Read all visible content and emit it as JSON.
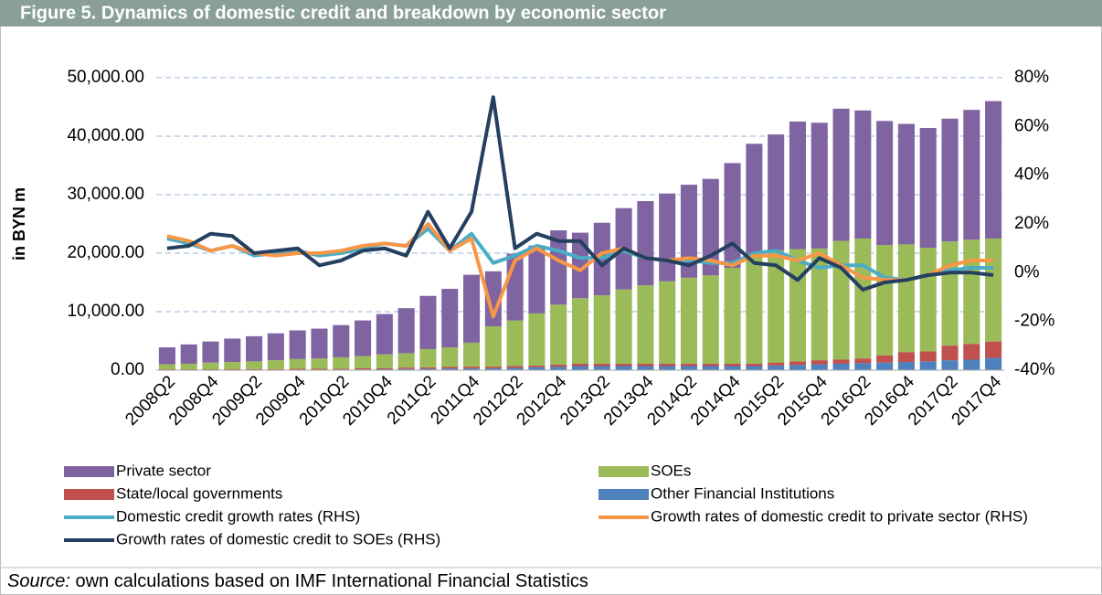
{
  "chart_data": {
    "type": "bar",
    "stacked": true,
    "title": "Figure 5.  Dynamics of domestic credit and breakdown by economic sector",
    "y_label": "in  BYN m",
    "source_label": "Source:",
    "source_text": " own calculations based on IMF International Financial Statistics",
    "legend": "bottom",
    "grid": true,
    "categories": [
      "2008Q2",
      null,
      "2008Q4",
      null,
      "2009Q2",
      null,
      "2009Q4",
      null,
      "2010Q2",
      null,
      "2010Q4",
      null,
      "2011Q2",
      null,
      "2011Q4",
      null,
      "2012Q2",
      null,
      "2012Q4",
      null,
      "2013Q2",
      null,
      "2013Q4",
      null,
      "2014Q2",
      null,
      "2014Q4",
      null,
      "2015Q2",
      null,
      "2015Q4",
      null,
      "2016Q2",
      null,
      "2016Q4",
      null,
      "2017Q2",
      null,
      "2017Q4"
    ],
    "ylim": [
      0,
      50000
    ],
    "yticks": [
      {
        "value": 0,
        "label": "0.00"
      },
      {
        "value": 10000,
        "label": "10,000.00"
      },
      {
        "value": 20000,
        "label": "20,000.00"
      },
      {
        "value": 30000,
        "label": "30,000.00"
      },
      {
        "value": 40000,
        "label": "40,000.00"
      },
      {
        "value": 50000,
        "label": "50,000.00"
      }
    ],
    "y2lim": [
      -40,
      80
    ],
    "y2ticks": [
      {
        "value": -40,
        "label": "-40%"
      },
      {
        "value": -20,
        "label": "-20%"
      },
      {
        "value": 0,
        "label": "0%"
      },
      {
        "value": 20,
        "label": "20%"
      },
      {
        "value": 40,
        "label": "40%"
      },
      {
        "value": 60,
        "label": "60%"
      },
      {
        "value": 80,
        "label": "80%"
      }
    ],
    "series": [
      {
        "name": "Private sector",
        "color": "#8064a2",
        "type": "bar",
        "values": [
          2900,
          3300,
          3600,
          4000,
          4300,
          4600,
          4900,
          5100,
          5500,
          6100,
          6900,
          7700,
          9100,
          10000,
          11600,
          9400,
          11400,
          11600,
          12700,
          11200,
          12400,
          13900,
          14400,
          15000,
          15900,
          16500,
          17900,
          19200,
          19800,
          21800,
          21500,
          22600,
          21900,
          21200,
          20600,
          20500,
          21000,
          22200,
          23500
        ]
      },
      {
        "name": "SOEs",
        "color": "#9bbb59",
        "type": "bar",
        "values": [
          850,
          950,
          1140,
          1240,
          1330,
          1520,
          1670,
          1760,
          1950,
          2080,
          2350,
          2450,
          3100,
          3350,
          4100,
          6900,
          7800,
          8900,
          10250,
          11200,
          11700,
          12700,
          13400,
          14100,
          14700,
          15100,
          16400,
          18400,
          19200,
          19200,
          19100,
          20300,
          20500,
          18900,
          18400,
          17700,
          17800,
          17800,
          17600
        ]
      },
      {
        "name": "State/local governments",
        "color": "#c0504d",
        "type": "bar",
        "values": [
          100,
          100,
          100,
          100,
          100,
          100,
          150,
          150,
          150,
          200,
          200,
          250,
          250,
          250,
          300,
          300,
          300,
          300,
          350,
          400,
          400,
          400,
          400,
          400,
          400,
          400,
          400,
          400,
          500,
          600,
          700,
          700,
          800,
          1200,
          1700,
          1700,
          2500,
          2700,
          2800
        ]
      },
      {
        "name": "Other Financial Institutions",
        "color": "#4f81bd",
        "type": "bar",
        "values": [
          50,
          50,
          60,
          60,
          70,
          80,
          80,
          90,
          100,
          120,
          150,
          200,
          250,
          300,
          300,
          300,
          400,
          500,
          600,
          700,
          700,
          700,
          700,
          700,
          700,
          700,
          700,
          700,
          800,
          900,
          1000,
          1100,
          1200,
          1300,
          1400,
          1500,
          1700,
          1800,
          2100
        ]
      },
      {
        "name": "Domestic credit growth rates (RHS)",
        "color": "#4bacc6",
        "type": "line",
        "axis": "y2",
        "values": [
          14,
          12,
          9,
          11,
          7,
          8,
          9,
          7,
          8,
          10,
          12,
          11,
          18,
          9,
          16,
          4,
          7,
          11,
          9,
          6,
          6,
          9,
          6,
          5,
          5,
          4,
          4,
          8,
          9,
          5,
          2,
          3,
          3,
          -2,
          -3,
          -1,
          1,
          2,
          2
        ]
      },
      {
        "name": "Growth rates of domestic credit to private sector (RHS)",
        "color": "#f79646",
        "type": "line",
        "axis": "y2",
        "values": [
          15,
          13,
          9,
          11,
          8,
          7,
          8,
          8,
          9,
          11,
          12,
          11,
          20,
          9,
          14,
          -18,
          5,
          10,
          5,
          1,
          8,
          10,
          6,
          5,
          6,
          5,
          3,
          7,
          7,
          5,
          8,
          3,
          -2,
          -3,
          -3,
          -1,
          3,
          5,
          5
        ]
      },
      {
        "name": "Growth rates of domestic credit to SOEs  (RHS)",
        "color": "#243f60",
        "type": "line",
        "axis": "y2",
        "values": [
          10,
          11,
          16,
          15,
          8,
          9,
          10,
          3,
          5,
          9,
          10,
          7,
          25,
          10,
          25,
          72,
          10,
          16,
          13,
          13,
          3,
          10,
          6,
          5,
          3,
          7,
          12,
          4,
          3,
          -3,
          6,
          2,
          -7,
          -4,
          -3,
          -1,
          0,
          0,
          -1
        ]
      }
    ]
  }
}
